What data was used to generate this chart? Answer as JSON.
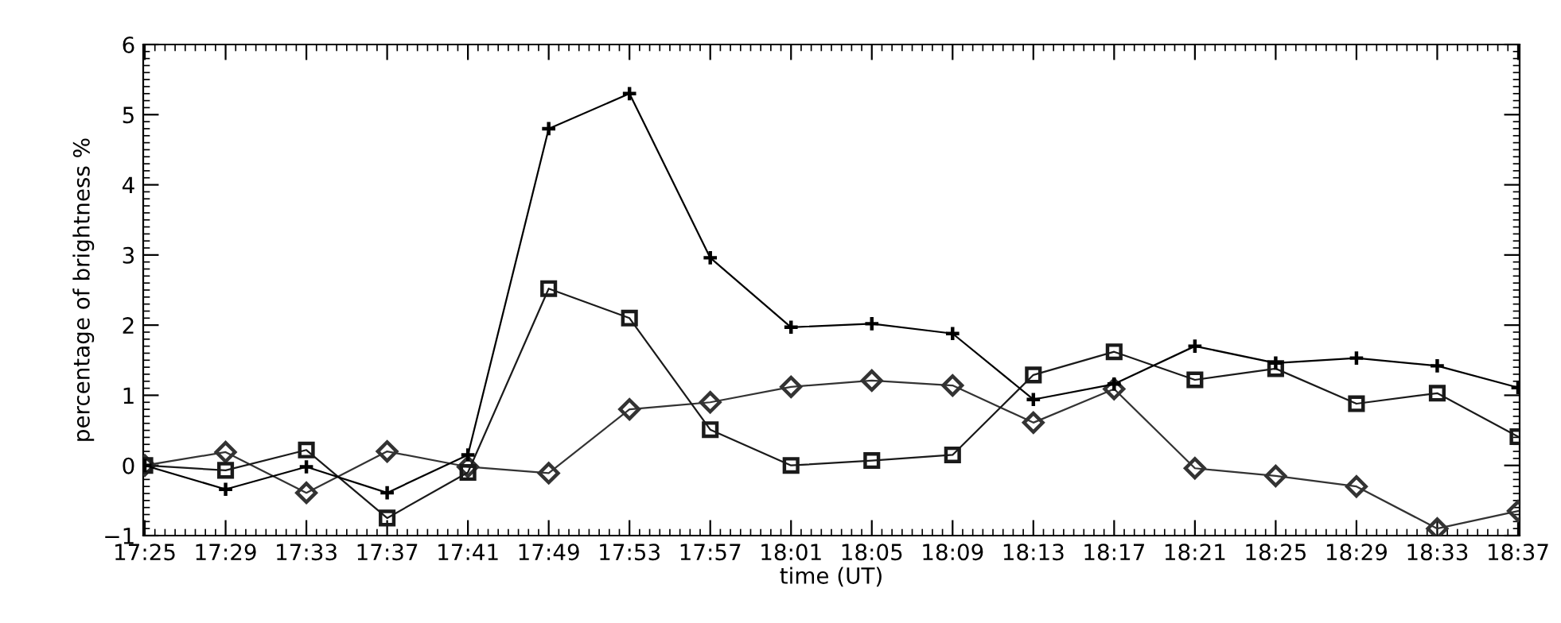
{
  "chart_data": {
    "type": "line",
    "xlabel": "time (UT)",
    "ylabel": "percentage of brightness %",
    "categories": [
      "17:25",
      "17:29",
      "17:33",
      "17:37",
      "17:41",
      "17:49",
      "17:53",
      "17:57",
      "18:01",
      "18:05",
      "18:09",
      "18:13",
      "18:17",
      "18:21",
      "18:25",
      "18:29",
      "18:33",
      "18:37"
    ],
    "series": [
      {
        "color": "#000000",
        "marker": "cross",
        "values": [
          0.0,
          -0.34,
          -0.02,
          -0.39,
          0.15,
          4.8,
          5.3,
          2.96,
          1.97,
          2.02,
          1.88,
          0.94,
          1.16,
          1.7,
          1.46,
          1.53,
          1.42,
          1.11
        ]
      },
      {
        "color": "#1a1a1a",
        "marker": "square",
        "values": [
          0.0,
          -0.07,
          0.22,
          -0.75,
          -0.1,
          2.52,
          2.1,
          0.51,
          0.0,
          0.07,
          0.15,
          1.29,
          1.62,
          1.22,
          1.38,
          0.88,
          1.03,
          0.41
        ]
      },
      {
        "color": "#333333",
        "marker": "diamond",
        "values": [
          0.0,
          0.19,
          -0.39,
          0.2,
          -0.02,
          -0.11,
          0.8,
          0.9,
          1.12,
          1.21,
          1.14,
          0.61,
          1.09,
          -0.04,
          -0.15,
          -0.3,
          -0.9,
          -0.65
        ]
      }
    ],
    "ylim": [
      -1,
      6
    ],
    "yticks": [
      {
        "value": -1,
        "label": "−1"
      },
      0,
      1,
      2,
      3,
      4,
      5,
      6
    ],
    "grid": false,
    "legend": false,
    "line_style": "solid"
  }
}
